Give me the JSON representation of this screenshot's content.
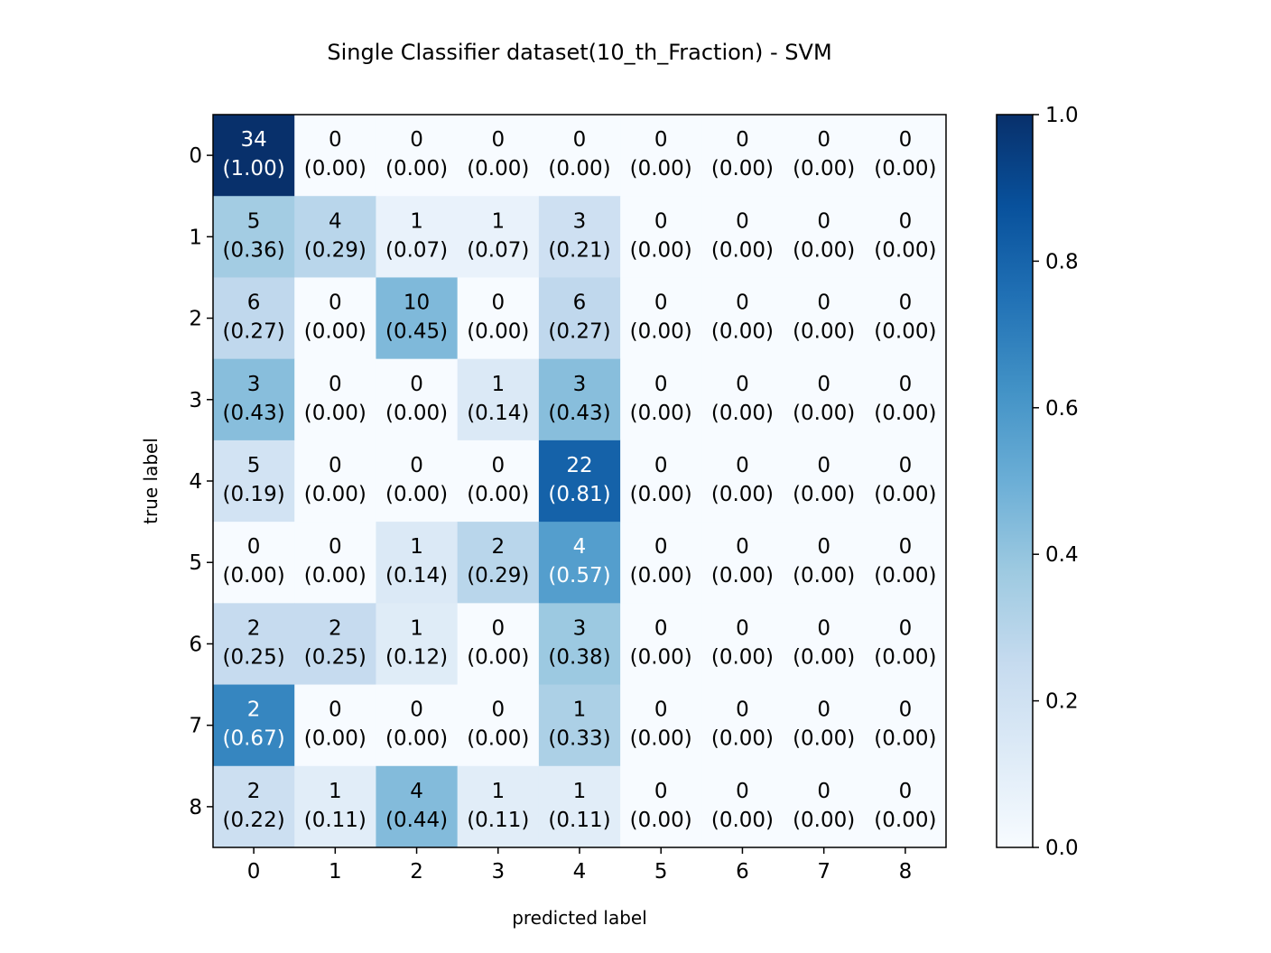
{
  "chart_data": {
    "type": "heatmap",
    "title": "Single Classifier dataset(10_th_Fraction) - SVM",
    "xlabel": "predicted label",
    "ylabel": "true label",
    "x_ticks": [
      "0",
      "1",
      "2",
      "3",
      "4",
      "5",
      "6",
      "7",
      "8"
    ],
    "y_ticks": [
      "0",
      "1",
      "2",
      "3",
      "4",
      "5",
      "6",
      "7",
      "8"
    ],
    "counts": [
      [
        34,
        0,
        0,
        0,
        0,
        0,
        0,
        0,
        0
      ],
      [
        5,
        4,
        1,
        1,
        3,
        0,
        0,
        0,
        0
      ],
      [
        6,
        0,
        10,
        0,
        6,
        0,
        0,
        0,
        0
      ],
      [
        3,
        0,
        0,
        1,
        3,
        0,
        0,
        0,
        0
      ],
      [
        5,
        0,
        0,
        0,
        22,
        0,
        0,
        0,
        0
      ],
      [
        0,
        0,
        1,
        2,
        4,
        0,
        0,
        0,
        0
      ],
      [
        2,
        2,
        1,
        0,
        3,
        0,
        0,
        0,
        0
      ],
      [
        2,
        0,
        0,
        0,
        1,
        0,
        0,
        0,
        0
      ],
      [
        2,
        1,
        4,
        1,
        1,
        0,
        0,
        0,
        0
      ]
    ],
    "normalized": [
      [
        1.0,
        0.0,
        0.0,
        0.0,
        0.0,
        0.0,
        0.0,
        0.0,
        0.0
      ],
      [
        0.36,
        0.29,
        0.07,
        0.07,
        0.21,
        0.0,
        0.0,
        0.0,
        0.0
      ],
      [
        0.27,
        0.0,
        0.45,
        0.0,
        0.27,
        0.0,
        0.0,
        0.0,
        0.0
      ],
      [
        0.43,
        0.0,
        0.0,
        0.14,
        0.43,
        0.0,
        0.0,
        0.0,
        0.0
      ],
      [
        0.19,
        0.0,
        0.0,
        0.0,
        0.81,
        0.0,
        0.0,
        0.0,
        0.0
      ],
      [
        0.0,
        0.0,
        0.14,
        0.29,
        0.57,
        0.0,
        0.0,
        0.0,
        0.0
      ],
      [
        0.25,
        0.25,
        0.12,
        0.0,
        0.38,
        0.0,
        0.0,
        0.0,
        0.0
      ],
      [
        0.67,
        0.0,
        0.0,
        0.0,
        0.33,
        0.0,
        0.0,
        0.0,
        0.0
      ],
      [
        0.22,
        0.11,
        0.44,
        0.11,
        0.11,
        0.0,
        0.0,
        0.0,
        0.0
      ]
    ],
    "colorbar": {
      "range": [
        0.0,
        1.0
      ],
      "ticks": [
        "0.0",
        "0.2",
        "0.4",
        "0.6",
        "0.8",
        "1.0"
      ],
      "colormap": "Blues",
      "colormap_stops": [
        "#f7fbff",
        "#deebf7",
        "#c6dbef",
        "#9ecae1",
        "#6baed6",
        "#4292c6",
        "#2171b5",
        "#08519c",
        "#08306b"
      ]
    }
  }
}
